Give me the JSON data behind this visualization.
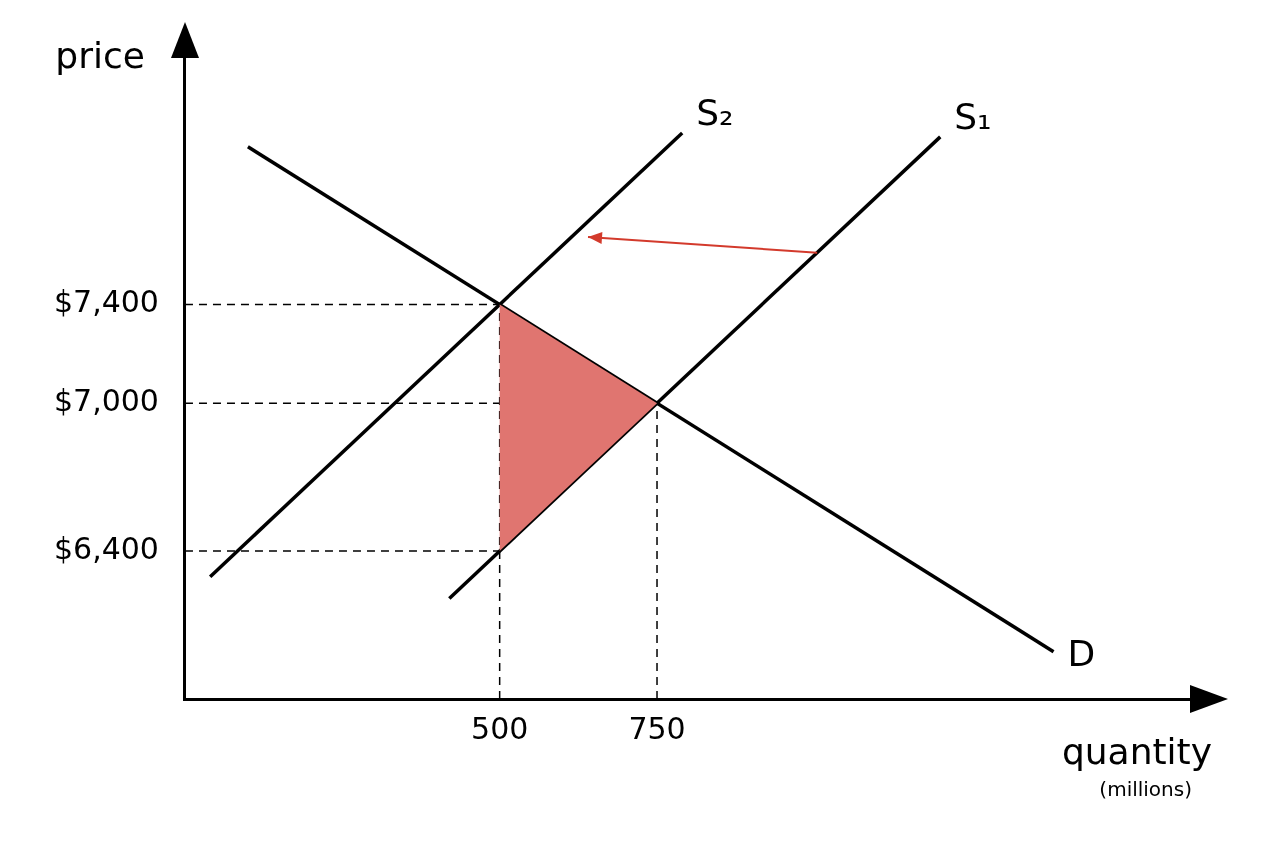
{
  "chart_data": {
    "type": "line",
    "xlabel": "quantity",
    "ylabel": "price",
    "annotations": [
      "(millions)"
    ],
    "xlim": [
      0,
      1600
    ],
    "ylim": [
      5800,
      8400
    ],
    "xticks": [
      500,
      750
    ],
    "yticks": [
      {
        "value": 6400,
        "label": "$6,400"
      },
      {
        "value": 7000,
        "label": "$7,000"
      },
      {
        "value": 7400,
        "label": "$7,400"
      }
    ],
    "grid": false,
    "legend": false,
    "marker": "none",
    "series": [
      {
        "type": "area",
        "color": "#e07570",
        "x": [
          500,
          750,
          500,
          500
        ],
        "values": [
          7400,
          7000,
          6400,
          7400
        ]
      },
      {
        "name": "S₂",
        "color": "#000000",
        "x": [
          40,
          790
        ],
        "values": [
          6296,
          8096
        ]
      },
      {
        "name": "S₁",
        "color": "#000000",
        "x": [
          420,
          1200
        ],
        "values": [
          6208,
          8080
        ]
      },
      {
        "name": "D",
        "color": "#000000",
        "x": [
          100,
          1380
        ],
        "values": [
          8040,
          5992
        ]
      },
      {
        "color": "#000000",
        "line_style": "dashed",
        "x": [
          0,
          500
        ],
        "values": [
          7400,
          7400
        ]
      },
      {
        "color": "#000000",
        "line_style": "dashed",
        "x": [
          0,
          750
        ],
        "values": [
          7000,
          7000
        ]
      },
      {
        "color": "#000000",
        "line_style": "dashed",
        "x": [
          0,
          500
        ],
        "values": [
          6400,
          6400
        ]
      },
      {
        "color": "#000000",
        "line_style": "dashed",
        "x": [
          500,
          500
        ],
        "values": [
          5800,
          7400
        ]
      },
      {
        "color": "#000000",
        "line_style": "dashed",
        "x": [
          750,
          750
        ],
        "values": [
          5800,
          7000
        ]
      }
    ]
  }
}
